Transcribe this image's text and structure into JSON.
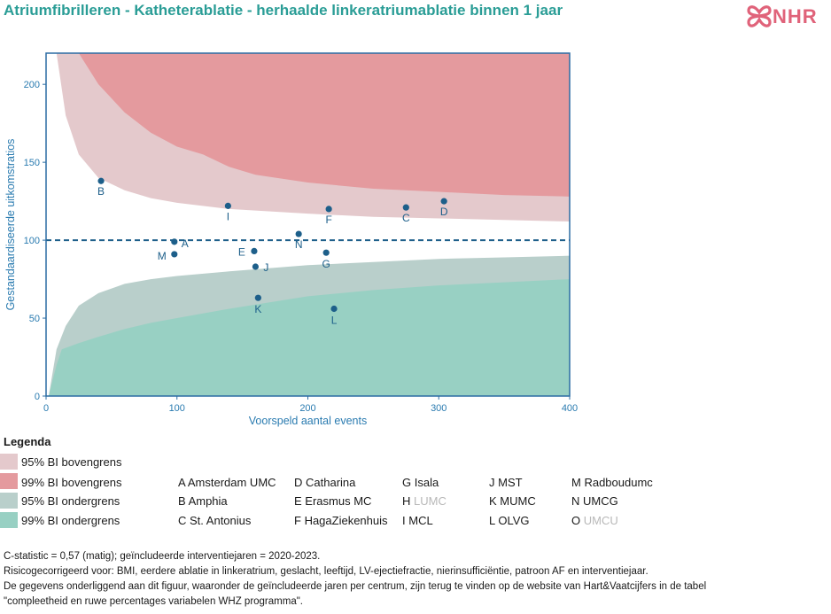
{
  "header": {
    "title": "Atriumfibrilleren - Katheterablatie - herhaalde linkeratriumablatie binnen 1 jaar",
    "logo_text": "NHR"
  },
  "colors": {
    "teal": "#2a9d96",
    "axis_blue": "#2b6ca3",
    "upper95": "#e4c9cc",
    "upper99": "#e49a9e",
    "lower95": "#b9cfcb",
    "lower99": "#98d0c3",
    "point": "#1d5f8a",
    "logo": "#e0637a"
  },
  "chart_data": {
    "type": "scatter",
    "subtype": "funnel",
    "xlabel": "Voorspeld aantal events",
    "ylabel": "Gestandaardiseerde uitkomstratios",
    "xlim": [
      0,
      400
    ],
    "ylim": [
      0,
      220
    ],
    "xticks": [
      0,
      100,
      200,
      300,
      400
    ],
    "yticks": [
      0,
      50,
      100,
      150,
      200
    ],
    "reference_line": 100,
    "points": [
      {
        "label": "B",
        "x": 42,
        "y": 138
      },
      {
        "label": "I",
        "x": 139,
        "y": 122
      },
      {
        "label": "F",
        "x": 216,
        "y": 120
      },
      {
        "label": "C",
        "x": 275,
        "y": 121
      },
      {
        "label": "D",
        "x": 304,
        "y": 125
      },
      {
        "label": "A",
        "x": 98,
        "y": 99
      },
      {
        "label": "M",
        "x": 98,
        "y": 91
      },
      {
        "label": "N",
        "x": 193,
        "y": 104
      },
      {
        "label": "E",
        "x": 159,
        "y": 93
      },
      {
        "label": "G",
        "x": 214,
        "y": 92
      },
      {
        "label": "J",
        "x": 160,
        "y": 83
      },
      {
        "label": "K",
        "x": 162,
        "y": 63
      },
      {
        "label": "L",
        "x": 220,
        "y": 56
      }
    ],
    "bands": {
      "upper99": [
        [
          25,
          220
        ],
        [
          40,
          200
        ],
        [
          60,
          182
        ],
        [
          80,
          169
        ],
        [
          100,
          160
        ],
        [
          120,
          155
        ],
        [
          140,
          147
        ],
        [
          160,
          142
        ],
        [
          200,
          137
        ],
        [
          250,
          133
        ],
        [
          300,
          131
        ],
        [
          350,
          129
        ],
        [
          400,
          128
        ]
      ],
      "upper95": [
        [
          8,
          220
        ],
        [
          15,
          180
        ],
        [
          25,
          155
        ],
        [
          40,
          140
        ],
        [
          60,
          132
        ],
        [
          80,
          127
        ],
        [
          100,
          124
        ],
        [
          140,
          120
        ],
        [
          200,
          117
        ],
        [
          250,
          115
        ],
        [
          300,
          114
        ],
        [
          350,
          113
        ],
        [
          400,
          112
        ]
      ],
      "lower95": [
        [
          2,
          0
        ],
        [
          8,
          30
        ],
        [
          15,
          45
        ],
        [
          25,
          58
        ],
        [
          40,
          66
        ],
        [
          60,
          72
        ],
        [
          80,
          75
        ],
        [
          100,
          77
        ],
        [
          140,
          80
        ],
        [
          200,
          84
        ],
        [
          250,
          86
        ],
        [
          300,
          88
        ],
        [
          350,
          89
        ],
        [
          400,
          90
        ]
      ],
      "lower99": [
        [
          2,
          0
        ],
        [
          8,
          20
        ],
        [
          12,
          30
        ],
        [
          25,
          34
        ],
        [
          40,
          38
        ],
        [
          60,
          43
        ],
        [
          80,
          47
        ],
        [
          100,
          50
        ],
        [
          140,
          56
        ],
        [
          200,
          64
        ],
        [
          250,
          68
        ],
        [
          300,
          71
        ],
        [
          350,
          73
        ],
        [
          400,
          75
        ]
      ]
    }
  },
  "legend": {
    "title": "Legenda",
    "items": [
      {
        "label": "95% BI bovengrens"
      },
      {
        "label": "99% BI bovengrens"
      },
      {
        "label": "95% BI ondergrens"
      },
      {
        "label": "99% BI ondergrens"
      }
    ]
  },
  "centers": [
    {
      "code": "A",
      "name": "Amsterdam UMC",
      "excluded": false
    },
    {
      "code": "B",
      "name": "Amphia",
      "excluded": false
    },
    {
      "code": "C",
      "name": "St. Antonius",
      "excluded": false
    },
    {
      "code": "D",
      "name": "Catharina",
      "excluded": false
    },
    {
      "code": "E",
      "name": "Erasmus MC",
      "excluded": false
    },
    {
      "code": "F",
      "name": "HagaZiekenhuis",
      "excluded": false
    },
    {
      "code": "G",
      "name": "Isala",
      "excluded": false
    },
    {
      "code": "H",
      "name": "LUMC",
      "excluded": true
    },
    {
      "code": "I",
      "name": "MCL",
      "excluded": false
    },
    {
      "code": "J",
      "name": "MST",
      "excluded": false
    },
    {
      "code": "K",
      "name": "MUMC",
      "excluded": false
    },
    {
      "code": "L",
      "name": "OLVG",
      "excluded": false
    },
    {
      "code": "M",
      "name": "Radboudumc",
      "excluded": false
    },
    {
      "code": "N",
      "name": "UMCG",
      "excluded": false
    },
    {
      "code": "O",
      "name": "UMCU",
      "excluded": true
    }
  ],
  "footnotes": {
    "line1": "C-statistic =  0,57 (matig); geïncludeerde interventiejaren = 2020-2023.",
    "line2": "Risicogecorrigeerd voor: BMI, eerdere ablatie in linkeratrium, geslacht, leeftijd, LV-ejectiefractie, nierinsufficiëntie, patroon AF en interventiejaar.",
    "line3": "De gegevens onderliggend aan dit figuur, waaronder de geïncludeerde jaren per centrum, zijn terug te vinden op de website van Hart&Vaatcijfers in de tabel",
    "line4": "\"compleetheid en ruwe percentages variabelen WHZ programma\"."
  }
}
